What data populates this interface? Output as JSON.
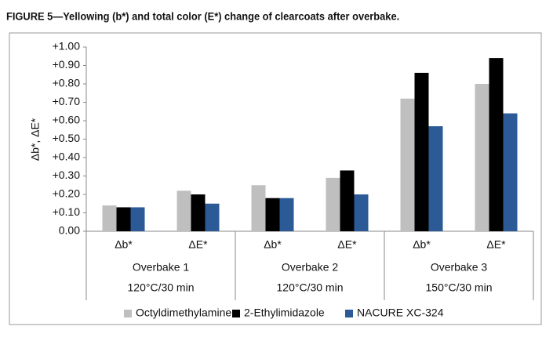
{
  "chart_data": {
    "type": "bar",
    "title": "FIGURE 5—Yellowing (b*) and total color (E*) change of clearcoats after overbake.",
    "y_label": "Δb*, ΔE*",
    "categories": [
      "Δb*",
      "ΔE*",
      "Δb*",
      "ΔE*",
      "Δb*",
      "ΔE*"
    ],
    "groups": [
      {
        "label": "Overbake 1",
        "sublabel": "120°C/30 min"
      },
      {
        "label": "Overbake 2",
        "sublabel": "120°C/30 min"
      },
      {
        "label": "Overbake 3",
        "sublabel": "150°C/30 min"
      }
    ],
    "series": [
      {
        "name": "Octyldimethylamine",
        "color": "#bfbfbf",
        "values": [
          0.14,
          0.22,
          0.25,
          0.29,
          0.72,
          0.8
        ]
      },
      {
        "name": "2-Ethylimidazole",
        "color": "#000000",
        "values": [
          0.13,
          0.2,
          0.18,
          0.33,
          0.86,
          0.94
        ]
      },
      {
        "name": "NACURE XC-324",
        "color": "#2b5a96",
        "values": [
          0.13,
          0.15,
          0.18,
          0.2,
          0.57,
          0.64
        ]
      }
    ],
    "ylim": [
      0,
      1
    ],
    "yticks": [
      {
        "value": 0,
        "label": "0.00"
      },
      {
        "value": 0.1,
        "label": "+0.10"
      },
      {
        "value": 0.2,
        "label": "+0.20"
      },
      {
        "value": 0.3,
        "label": "+0.30"
      },
      {
        "value": 0.4,
        "label": "+0.40"
      },
      {
        "value": 0.5,
        "label": "+0.50"
      },
      {
        "value": 0.6,
        "label": "+0.60"
      },
      {
        "value": 0.7,
        "label": "+0.70"
      },
      {
        "value": 0.8,
        "label": "+0.80"
      },
      {
        "value": 0.9,
        "label": "+0.90"
      },
      {
        "value": 1,
        "label": "+1.00"
      }
    ],
    "grid": false,
    "legend": "bottom"
  }
}
